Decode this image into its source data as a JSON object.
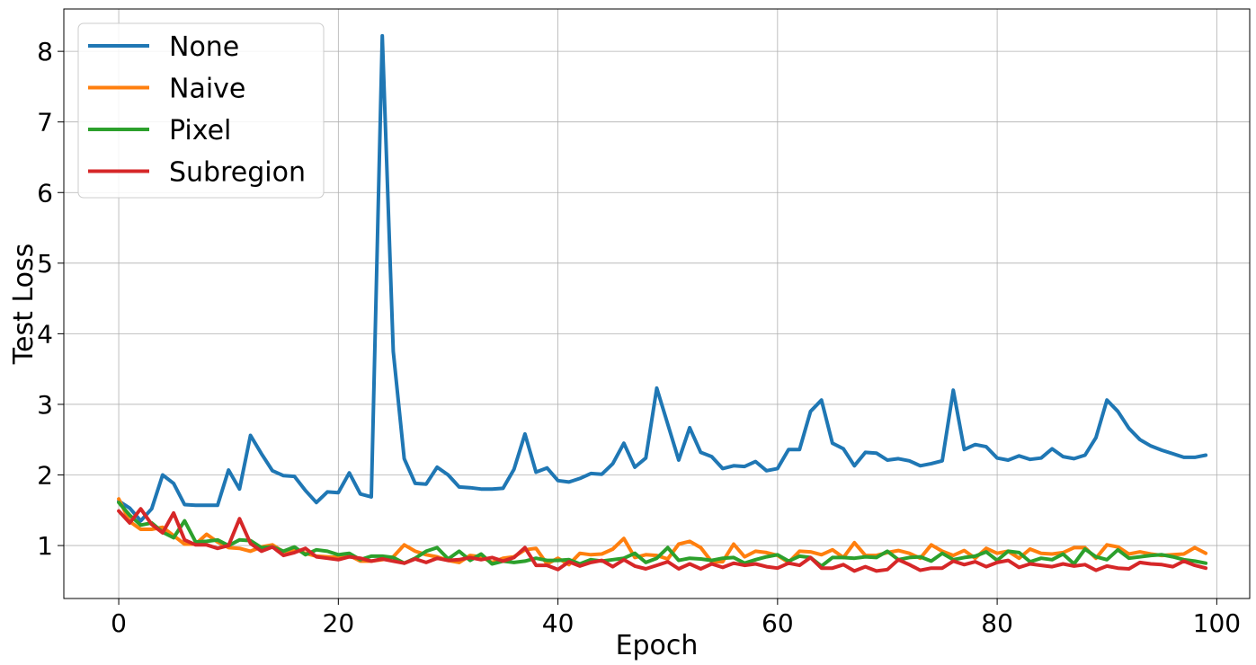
{
  "chart_data": {
    "type": "line",
    "title": "",
    "xlabel": "Epoch",
    "ylabel": "Test Loss",
    "xlim": [
      -5,
      103
    ],
    "ylim": [
      0.25,
      8.6
    ],
    "xticks": [
      0,
      20,
      40,
      60,
      80,
      100
    ],
    "yticks": [
      1,
      2,
      3,
      4,
      5,
      6,
      7,
      8
    ],
    "grid": true,
    "legend_position": "top-left",
    "x": [
      0,
      1,
      2,
      3,
      4,
      5,
      6,
      7,
      8,
      9,
      10,
      11,
      12,
      13,
      14,
      15,
      16,
      17,
      18,
      19,
      20,
      21,
      22,
      23,
      24,
      25,
      26,
      27,
      28,
      29,
      30,
      31,
      32,
      33,
      34,
      35,
      36,
      37,
      38,
      39,
      40,
      41,
      42,
      43,
      44,
      45,
      46,
      47,
      48,
      49,
      50,
      51,
      52,
      53,
      54,
      55,
      56,
      57,
      58,
      59,
      60,
      61,
      62,
      63,
      64,
      65,
      66,
      67,
      68,
      69,
      70,
      71,
      72,
      73,
      74,
      75,
      76,
      77,
      78,
      79,
      80,
      81,
      82,
      83,
      84,
      85,
      86,
      87,
      88,
      89,
      90,
      91,
      92,
      93,
      94,
      95,
      96,
      97,
      98,
      99
    ],
    "series": [
      {
        "name": "None",
        "color": "#1f77b4",
        "values": [
          1.63,
          1.53,
          1.35,
          1.52,
          2.0,
          1.88,
          1.58,
          1.57,
          1.57,
          1.57,
          2.07,
          1.8,
          2.56,
          2.3,
          2.06,
          1.99,
          1.98,
          1.78,
          1.61,
          1.76,
          1.75,
          2.03,
          1.73,
          1.69,
          8.22,
          3.75,
          2.23,
          1.88,
          1.87,
          2.11,
          2.0,
          1.83,
          1.82,
          1.8,
          1.8,
          1.81,
          2.08,
          2.58,
          2.04,
          2.1,
          1.92,
          1.9,
          1.95,
          2.02,
          2.01,
          2.16,
          2.45,
          2.11,
          2.24,
          3.23,
          2.72,
          2.21,
          2.67,
          2.32,
          2.26,
          2.09,
          2.13,
          2.12,
          2.19,
          2.06,
          2.09,
          2.36,
          2.36,
          2.9,
          3.06,
          2.45,
          2.37,
          2.13,
          2.32,
          2.31,
          2.21,
          2.23,
          2.2,
          2.13,
          2.16,
          2.2,
          3.2,
          2.36,
          2.43,
          2.4,
          2.24,
          2.21,
          2.27,
          2.22,
          2.24,
          2.37,
          2.26,
          2.23,
          2.28,
          2.53,
          3.06,
          2.9,
          2.66,
          2.5,
          2.41,
          2.35,
          2.3,
          2.25,
          2.25,
          2.28
        ]
      },
      {
        "name": "Naive",
        "color": "#ff7f0e",
        "values": [
          1.66,
          1.34,
          1.23,
          1.23,
          1.26,
          1.14,
          1.02,
          1.02,
          1.16,
          1.05,
          0.97,
          0.96,
          0.92,
          0.98,
          1.01,
          0.91,
          0.95,
          0.89,
          0.85,
          0.84,
          0.83,
          0.86,
          0.78,
          0.78,
          0.8,
          0.84,
          1.01,
          0.92,
          0.87,
          0.84,
          0.79,
          0.76,
          0.86,
          0.84,
          0.76,
          0.82,
          0.84,
          0.94,
          0.96,
          0.74,
          0.82,
          0.73,
          0.89,
          0.87,
          0.88,
          0.95,
          1.1,
          0.83,
          0.87,
          0.86,
          0.81,
          1.02,
          1.06,
          0.97,
          0.77,
          0.77,
          1.02,
          0.84,
          0.92,
          0.9,
          0.86,
          0.76,
          0.92,
          0.91,
          0.87,
          0.94,
          0.83,
          1.04,
          0.86,
          0.86,
          0.9,
          0.93,
          0.89,
          0.82,
          1.01,
          0.92,
          0.86,
          0.93,
          0.82,
          0.96,
          0.89,
          0.92,
          0.82,
          0.95,
          0.89,
          0.88,
          0.9,
          0.97,
          0.97,
          0.82,
          1.01,
          0.98,
          0.88,
          0.91,
          0.88,
          0.86,
          0.87,
          0.88,
          0.97,
          0.89
        ]
      },
      {
        "name": "Pixel",
        "color": "#2ca02c",
        "values": [
          1.61,
          1.43,
          1.29,
          1.32,
          1.19,
          1.11,
          1.35,
          1.05,
          1.06,
          1.08,
          1.0,
          1.08,
          1.07,
          0.97,
          0.98,
          0.92,
          0.98,
          0.87,
          0.94,
          0.92,
          0.87,
          0.89,
          0.8,
          0.85,
          0.85,
          0.83,
          0.75,
          0.82,
          0.92,
          0.97,
          0.81,
          0.92,
          0.79,
          0.88,
          0.74,
          0.78,
          0.76,
          0.78,
          0.82,
          0.79,
          0.79,
          0.8,
          0.74,
          0.8,
          0.78,
          0.8,
          0.82,
          0.89,
          0.76,
          0.82,
          0.97,
          0.79,
          0.82,
          0.81,
          0.79,
          0.82,
          0.83,
          0.75,
          0.8,
          0.84,
          0.87,
          0.78,
          0.85,
          0.83,
          0.71,
          0.83,
          0.83,
          0.82,
          0.84,
          0.83,
          0.92,
          0.8,
          0.83,
          0.84,
          0.78,
          0.89,
          0.8,
          0.83,
          0.85,
          0.91,
          0.79,
          0.92,
          0.9,
          0.77,
          0.82,
          0.8,
          0.88,
          0.74,
          0.95,
          0.84,
          0.8,
          0.94,
          0.82,
          0.84,
          0.86,
          0.87,
          0.84,
          0.8,
          0.78,
          0.75
        ]
      },
      {
        "name": "Subregion",
        "color": "#d62728",
        "values": [
          1.49,
          1.32,
          1.52,
          1.3,
          1.18,
          1.46,
          1.08,
          1.01,
          1.01,
          0.96,
          1.0,
          1.38,
          1.03,
          0.92,
          0.98,
          0.86,
          0.9,
          0.96,
          0.84,
          0.82,
          0.8,
          0.84,
          0.82,
          0.78,
          0.81,
          0.78,
          0.75,
          0.81,
          0.76,
          0.82,
          0.79,
          0.8,
          0.83,
          0.8,
          0.83,
          0.78,
          0.83,
          0.97,
          0.72,
          0.72,
          0.66,
          0.77,
          0.71,
          0.76,
          0.79,
          0.7,
          0.8,
          0.71,
          0.67,
          0.72,
          0.77,
          0.67,
          0.74,
          0.67,
          0.74,
          0.69,
          0.75,
          0.72,
          0.74,
          0.7,
          0.68,
          0.75,
          0.72,
          0.83,
          0.68,
          0.68,
          0.73,
          0.64,
          0.7,
          0.64,
          0.66,
          0.8,
          0.73,
          0.65,
          0.68,
          0.68,
          0.78,
          0.73,
          0.77,
          0.7,
          0.76,
          0.79,
          0.69,
          0.74,
          0.72,
          0.7,
          0.74,
          0.71,
          0.73,
          0.65,
          0.71,
          0.68,
          0.67,
          0.76,
          0.74,
          0.73,
          0.7,
          0.78,
          0.72,
          0.68
        ]
      }
    ]
  }
}
